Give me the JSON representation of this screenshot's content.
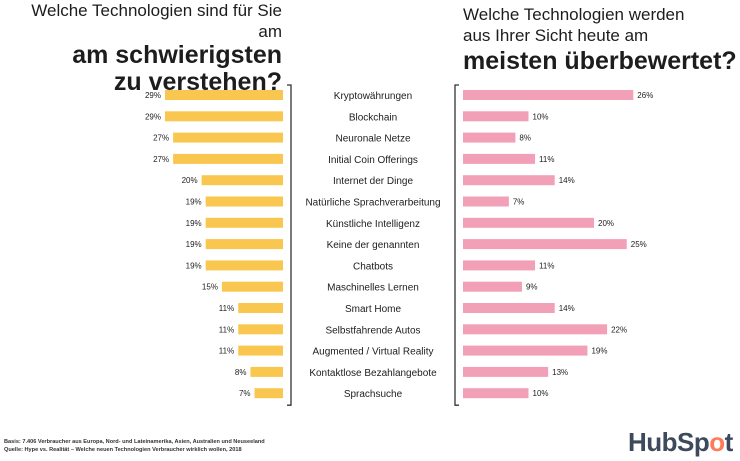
{
  "title_left": {
    "line1": "Welche Technologien sind für Sie am",
    "line2": "am schwierigsten",
    "line3": "zu verstehen?"
  },
  "title_right": {
    "line1": "Welche Technologien werden",
    "line2": "aus Ihrer Sicht heute am",
    "line3": "meisten überbewertet?"
  },
  "colors": {
    "left_bar": "#f9c74f",
    "right_bar": "#f2a0b7",
    "axis": "#333333"
  },
  "chart_data": [
    {
      "type": "bar",
      "orientation": "horizontal",
      "direction": "right-to-left",
      "title": "Welche Technologien sind für Sie am am schwierigsten zu verstehen?",
      "categories": [
        "Kryptowährungen",
        "Blockchain",
        "Neuronale Netze",
        "Initial Coin Offerings",
        "Internet der Dinge",
        "Natürliche Sprachverarbeitung",
        "Künstliche Intelligenz",
        "Keine der genannten",
        "Chatbots",
        "Maschinelles Lernen",
        "Smart Home",
        "Selbstfahrende Autos",
        "Augmented / Virtual Reality",
        "Kontaktlose Bezahlangebote",
        "Sprachsuche"
      ],
      "values": [
        29,
        29,
        27,
        27,
        20,
        19,
        19,
        19,
        19,
        15,
        11,
        11,
        11,
        8,
        7
      ],
      "labels": [
        "29%",
        "29%",
        "27%",
        "27%",
        "20%",
        "19%",
        "19%",
        "19%",
        "19%",
        "15%",
        "11%",
        "11%",
        "11%",
        "8%",
        "7%"
      ],
      "unit": "%"
    },
    {
      "type": "bar",
      "orientation": "horizontal",
      "direction": "left-to-right",
      "title": "Welche Technologien werden aus Ihrer Sicht heute am meisten überbewertet?",
      "categories": [
        "Kryptowährungen",
        "Blockchain",
        "Neuronale Netze",
        "Initial Coin Offerings",
        "Internet der Dinge",
        "Natürliche Sprachverarbeitung",
        "Künstliche Intelligenz",
        "Keine der genannten",
        "Chatbots",
        "Maschinelles Lernen",
        "Smart Home",
        "Selbstfahrende Autos",
        "Augmented / Virtual Reality",
        "Kontaktlose Bezahlangebote",
        "Sprachsuche"
      ],
      "values": [
        26,
        10,
        8,
        11,
        14,
        7,
        20,
        25,
        11,
        9,
        14,
        22,
        19,
        13,
        10
      ],
      "labels": [
        "26%",
        "10%",
        "8%",
        "11%",
        "14%",
        "7%",
        "20%",
        "25%",
        "11%",
        "9%",
        "14%",
        "22%",
        "19%",
        "13%",
        "10%"
      ],
      "unit": "%"
    }
  ],
  "footer": {
    "basis": "Basis: 7.406 Verbraucher aus Europa, Nord- und Lateinamerika, Asien, Australien und Neuseeland",
    "source": "Quelle: Hype vs. Realität – Welche neuen Technologien Verbraucher wirklich wollen, 2018"
  },
  "logo": {
    "part1": "HubSp",
    "part2": "o",
    "part3": "t"
  }
}
